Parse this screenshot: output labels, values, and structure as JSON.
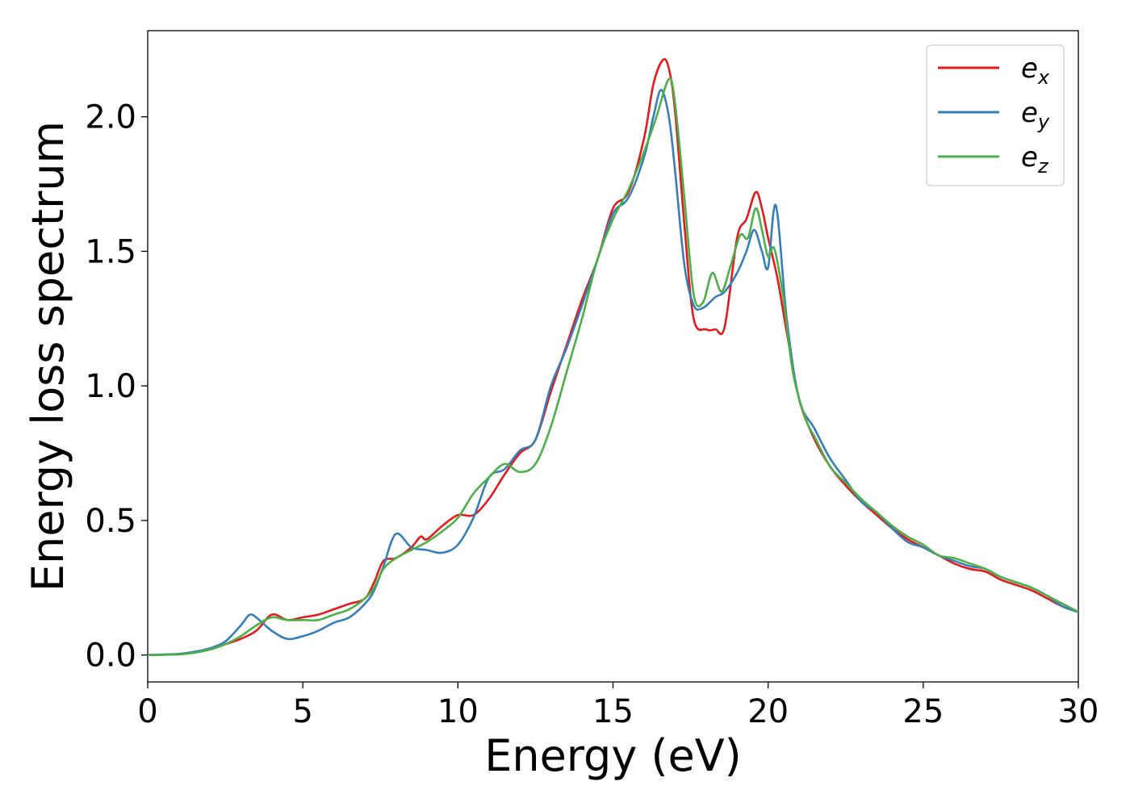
{
  "chart_data": {
    "type": "line",
    "xlabel": "Energy (eV)",
    "ylabel": "Energy loss spectrum",
    "xlim": [
      0,
      30
    ],
    "ylim": [
      -0.1,
      2.32
    ],
    "xticks": [
      0,
      5,
      10,
      15,
      20,
      25,
      30
    ],
    "xtick_labels": [
      "0",
      "5",
      "10",
      "15",
      "20",
      "25",
      "30"
    ],
    "yticks": [
      0.0,
      0.5,
      1.0,
      1.5,
      2.0
    ],
    "ytick_labels": [
      "0.0",
      "0.5",
      "1.0",
      "1.5",
      "2.0"
    ],
    "grid": false,
    "legend_position": "top-right",
    "series": [
      {
        "name": "e",
        "subscript": "x",
        "color": "#e41a1c",
        "x": [
          0,
          1,
          1.5,
          2,
          2.5,
          3,
          3.5,
          4,
          4.5,
          5,
          5.5,
          6,
          6.5,
          7,
          7.3,
          7.6,
          8,
          8.5,
          8.8,
          9,
          9.5,
          10,
          10.5,
          11,
          11.5,
          12,
          12.5,
          13,
          13.5,
          14,
          14.5,
          15,
          15.5,
          16,
          16.3,
          16.6,
          16.8,
          17,
          17.3,
          17.6,
          18,
          18.3,
          18.6,
          19,
          19.3,
          19.6,
          19.8,
          20,
          20.3,
          20.6,
          21,
          21.5,
          22,
          22.5,
          23,
          23.5,
          24,
          24.5,
          25,
          25.5,
          26,
          26.5,
          27,
          27.5,
          28,
          28.5,
          29,
          29.5,
          30
        ],
        "y": [
          0,
          0.003,
          0.01,
          0.02,
          0.04,
          0.06,
          0.09,
          0.15,
          0.13,
          0.14,
          0.15,
          0.17,
          0.19,
          0.21,
          0.27,
          0.35,
          0.36,
          0.4,
          0.44,
          0.43,
          0.48,
          0.52,
          0.52,
          0.58,
          0.67,
          0.75,
          0.8,
          0.98,
          1.15,
          1.32,
          1.47,
          1.66,
          1.72,
          1.92,
          2.12,
          2.21,
          2.18,
          2.02,
          1.6,
          1.25,
          1.21,
          1.21,
          1.22,
          1.55,
          1.62,
          1.72,
          1.66,
          1.55,
          1.4,
          1.2,
          0.95,
          0.8,
          0.7,
          0.63,
          0.57,
          0.52,
          0.47,
          0.43,
          0.4,
          0.37,
          0.34,
          0.32,
          0.31,
          0.28,
          0.26,
          0.24,
          0.21,
          0.18,
          0.16
        ]
      },
      {
        "name": "e",
        "subscript": "y",
        "color": "#377eb8",
        "x": [
          0,
          1,
          1.5,
          2,
          2.5,
          3,
          3.3,
          3.6,
          4,
          4.5,
          5,
          5.5,
          6,
          6.5,
          7,
          7.3,
          7.6,
          8,
          8.5,
          9,
          9.5,
          10,
          10.5,
          11,
          11.5,
          12,
          12.5,
          13,
          13.5,
          14,
          14.5,
          15,
          15.5,
          16,
          16.3,
          16.55,
          16.8,
          17,
          17.3,
          17.6,
          17.9,
          18.3,
          18.6,
          19,
          19.3,
          19.55,
          19.8,
          20,
          20.25,
          20.6,
          21,
          21.5,
          22,
          22.5,
          23,
          23.5,
          24,
          24.5,
          25,
          25.5,
          26,
          26.5,
          27,
          27.5,
          28,
          28.5,
          29,
          29.5,
          30
        ],
        "y": [
          0,
          0.004,
          0.012,
          0.025,
          0.05,
          0.11,
          0.15,
          0.13,
          0.09,
          0.06,
          0.07,
          0.09,
          0.12,
          0.14,
          0.19,
          0.24,
          0.33,
          0.45,
          0.4,
          0.39,
          0.38,
          0.41,
          0.51,
          0.66,
          0.69,
          0.76,
          0.8,
          1.0,
          1.14,
          1.3,
          1.47,
          1.64,
          1.7,
          1.85,
          2.0,
          2.1,
          2.0,
          1.8,
          1.45,
          1.3,
          1.29,
          1.33,
          1.35,
          1.42,
          1.5,
          1.58,
          1.5,
          1.44,
          1.67,
          1.25,
          0.95,
          0.84,
          0.73,
          0.65,
          0.57,
          0.53,
          0.47,
          0.42,
          0.4,
          0.37,
          0.35,
          0.33,
          0.32,
          0.29,
          0.27,
          0.25,
          0.22,
          0.18,
          0.16
        ]
      },
      {
        "name": "e",
        "subscript": "z",
        "color": "#4daf4a",
        "x": [
          0,
          1,
          1.5,
          2,
          2.5,
          3,
          3.5,
          4,
          4.5,
          5,
          5.5,
          6,
          6.5,
          7,
          7.3,
          7.6,
          8,
          8.5,
          9,
          9.5,
          10,
          10.5,
          11,
          11.5,
          12,
          12.5,
          13,
          13.5,
          14,
          14.5,
          15,
          15.5,
          16,
          16.4,
          16.8,
          17,
          17.3,
          17.6,
          17.9,
          18.2,
          18.5,
          18.8,
          19.1,
          19.35,
          19.6,
          19.8,
          20.0,
          20.2,
          20.5,
          20.8,
          21.2,
          21.5,
          22,
          22.5,
          23,
          23.5,
          24,
          24.5,
          25,
          25.5,
          26,
          26.5,
          27,
          27.5,
          28,
          28.5,
          29,
          29.5,
          30
        ],
        "y": [
          0,
          0.002,
          0.008,
          0.02,
          0.04,
          0.07,
          0.11,
          0.14,
          0.13,
          0.13,
          0.13,
          0.15,
          0.17,
          0.21,
          0.25,
          0.32,
          0.36,
          0.39,
          0.42,
          0.46,
          0.51,
          0.6,
          0.66,
          0.71,
          0.68,
          0.71,
          0.85,
          1.05,
          1.25,
          1.47,
          1.62,
          1.73,
          1.87,
          2.0,
          2.14,
          2.05,
          1.7,
          1.34,
          1.31,
          1.42,
          1.35,
          1.45,
          1.56,
          1.55,
          1.66,
          1.58,
          1.48,
          1.51,
          1.32,
          1.05,
          0.88,
          0.81,
          0.7,
          0.64,
          0.58,
          0.53,
          0.48,
          0.44,
          0.41,
          0.37,
          0.36,
          0.34,
          0.32,
          0.29,
          0.27,
          0.25,
          0.22,
          0.19,
          0.16
        ]
      }
    ]
  }
}
